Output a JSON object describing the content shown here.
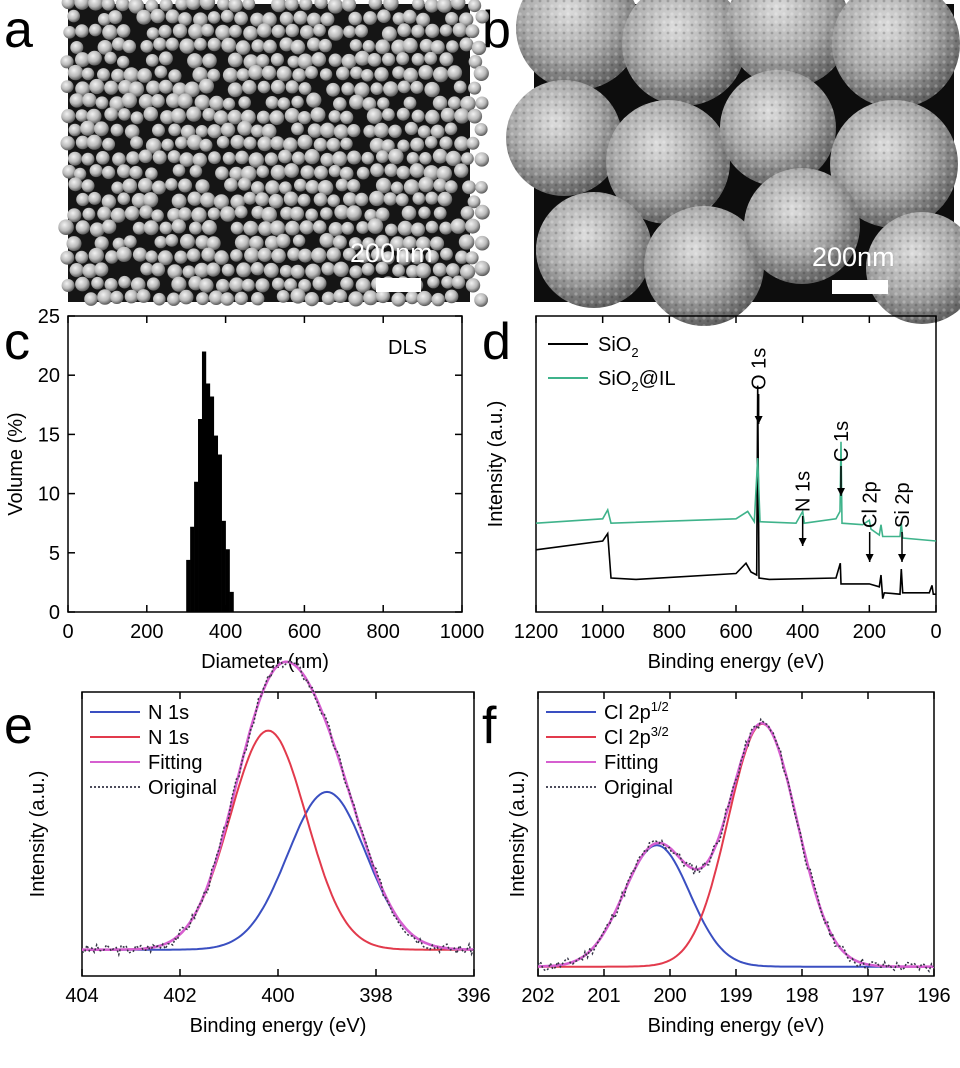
{
  "panels": {
    "a": {
      "label": "a",
      "scale_text": "200nm"
    },
    "b": {
      "label": "b",
      "scale_text": "200nm"
    },
    "c": {
      "label": "c"
    },
    "d": {
      "label": "d"
    },
    "e": {
      "label": "e"
    },
    "f": {
      "label": "f"
    }
  },
  "chart_data": [
    {
      "id": "c",
      "type": "bar",
      "xlabel": "Diameter (nm)",
      "ylabel": "Volume (%)",
      "annotation": "DLS",
      "xlim": [
        0,
        1000
      ],
      "ylim": [
        0,
        25
      ],
      "xticks": [
        0,
        200,
        400,
        600,
        800,
        1000
      ],
      "yticks": [
        0,
        5,
        10,
        15,
        20,
        25
      ],
      "bin_width": 10,
      "x": [
        305,
        315,
        325,
        335,
        345,
        355,
        365,
        375,
        385,
        395,
        405,
        415
      ],
      "values": [
        4.4,
        7.2,
        11,
        16.3,
        22,
        19.3,
        18.2,
        14.9,
        13.3,
        7.7,
        5.3,
        1.7
      ],
      "color": "#000000"
    },
    {
      "id": "d",
      "type": "line",
      "xlabel": "Binding energy (eV)",
      "ylabel": "Intensity (a.u.)",
      "xlim": [
        1200,
        0
      ],
      "reversed_x": true,
      "xticks": [
        1200,
        1000,
        800,
        600,
        400,
        200,
        0
      ],
      "legend_position": "top-left",
      "series": [
        {
          "name": "SiO2",
          "legend_main": "SiO",
          "legend_sub": "2",
          "legend_tail": "",
          "color": "#000000",
          "points": [
            [
              1200,
              4.2
            ],
            [
              1000,
              4.8
            ],
            [
              985,
              5.3
            ],
            [
              975,
              2.3
            ],
            [
              900,
              2.2
            ],
            [
              600,
              2.6
            ],
            [
              570,
              3.3
            ],
            [
              555,
              2.7
            ],
            [
              538,
              2.5
            ],
            [
              535,
              15.3
            ],
            [
              531,
              2.3
            ],
            [
              500,
              2.2
            ],
            [
              300,
              2.3
            ],
            [
              287,
              3.3
            ],
            [
              285,
              1.9
            ],
            [
              200,
              1.9
            ],
            [
              170,
              1.7
            ],
            [
              165,
              2.5
            ],
            [
              160,
              0.9
            ],
            [
              155,
              1.3
            ],
            [
              108,
              1.2
            ],
            [
              104,
              2.9
            ],
            [
              100,
              1.3
            ],
            [
              20,
              1.3
            ],
            [
              12,
              1.8
            ],
            [
              8,
              1.2
            ],
            [
              0,
              1.2
            ]
          ]
        },
        {
          "name": "SiO2@IL",
          "legend_main": "SiO",
          "legend_sub": "2",
          "legend_tail": "@IL",
          "color": "#3fb38b",
          "points": [
            [
              1200,
              6.0
            ],
            [
              1000,
              6.3
            ],
            [
              985,
              6.9
            ],
            [
              975,
              6.0
            ],
            [
              600,
              6.3
            ],
            [
              565,
              6.8
            ],
            [
              545,
              6.1
            ],
            [
              535,
              10.4
            ],
            [
              528,
              6.1
            ],
            [
              420,
              6.0
            ],
            [
              400,
              6.8
            ],
            [
              395,
              6.0
            ],
            [
              300,
              6.3
            ],
            [
              288,
              6.8
            ],
            [
              285,
              11.5
            ],
            [
              282,
              6.0
            ],
            [
              220,
              5.9
            ],
            [
              200,
              6.2
            ],
            [
              195,
              5.6
            ],
            [
              170,
              5.2
            ],
            [
              165,
              5.9
            ],
            [
              160,
              5.1
            ],
            [
              108,
              5.1
            ],
            [
              104,
              6.0
            ],
            [
              100,
              5.0
            ],
            [
              0,
              4.8
            ]
          ]
        }
      ],
      "annotations": [
        {
          "text": "O 1s",
          "x": 532
        },
        {
          "text": "N 1s",
          "x": 400
        },
        {
          "text": "C 1s",
          "x": 285
        },
        {
          "text": "Cl 2p",
          "x": 199
        },
        {
          "text": "Si 2p",
          "x": 102
        }
      ]
    },
    {
      "id": "e",
      "type": "line",
      "xlabel": "Binding energy (eV)",
      "ylabel": "Intensity (a.u.)",
      "xlim": [
        404,
        396
      ],
      "reversed_x": true,
      "xticks": [
        404,
        402,
        400,
        398,
        396
      ],
      "legend_position": "top-left",
      "baseline": 0.15,
      "series": [
        {
          "name": "N 1s",
          "color": "#3a4fc1",
          "kind": "gauss",
          "center": 399.0,
          "amplitude": 0.9,
          "sigma": 0.8
        },
        {
          "name": "N 1s",
          "color": "#e23a4c",
          "kind": "gauss",
          "center": 400.2,
          "amplitude": 1.25,
          "sigma": 0.78
        },
        {
          "name": "Fitting",
          "color": "#d65fd0",
          "kind": "sum"
        },
        {
          "name": "Original",
          "color": "#333344",
          "kind": "data",
          "dotted": true
        }
      ]
    },
    {
      "id": "f",
      "type": "line",
      "xlabel": "Binding energy (eV)",
      "ylabel": "Intensity (a.u.)",
      "xlim": [
        202,
        196
      ],
      "reversed_x": true,
      "xticks": [
        202,
        201,
        200,
        199,
        198,
        197,
        196
      ],
      "legend_position": "top-left",
      "baseline": 0.05,
      "series": [
        {
          "name": "Cl 2p1/2",
          "legend_main": "Cl 2p",
          "legend_sup": "1/2",
          "color": "#3a4fc1",
          "kind": "gauss",
          "center": 200.2,
          "amplitude": 0.65,
          "sigma": 0.5
        },
        {
          "name": "Cl 2p3/2",
          "legend_main": "Cl 2p",
          "legend_sup": "3/2",
          "color": "#e23a4c",
          "kind": "gauss",
          "center": 198.6,
          "amplitude": 1.3,
          "sigma": 0.52
        },
        {
          "name": "Fitting",
          "color": "#d65fd0",
          "kind": "sum"
        },
        {
          "name": "Original",
          "color": "#333344",
          "kind": "data",
          "dotted": true
        }
      ]
    }
  ]
}
